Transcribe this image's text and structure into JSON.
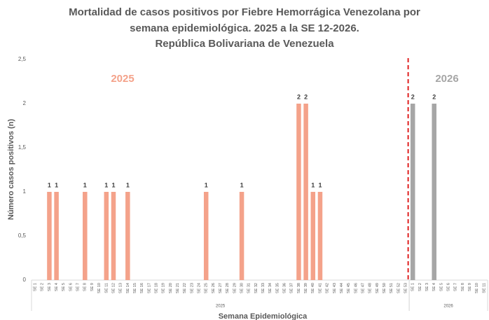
{
  "chart_data": {
    "type": "bar",
    "title": [
      "Mortalidad de casos positivos por Fiebre Hemorrágica Venezolana por",
      "semana epidemiológica. 2025 a la SE 12-2026.",
      "República Bolivariana de Venezuela"
    ],
    "y_label": "Número casos positivos (n)",
    "x_label": "Semana Epidemiológica",
    "categories": [
      "SE 1",
      "SE 2",
      "SE 3",
      "SE 4",
      "SE 5",
      "SE 6",
      "SE 7",
      "SE 8",
      "SE 9",
      "SE 10",
      "SE 11",
      "SE 12",
      "SE 13",
      "SE 14",
      "SE 15",
      "SE 16",
      "SE 17",
      "SE 18",
      "SE 19",
      "SE 20",
      "SE 21",
      "SE 22",
      "SE 23",
      "SE 24",
      "SE 25",
      "SE 26",
      "SE 27",
      "SE 28",
      "SE 29",
      "SE 30",
      "SE 31",
      "SE 32",
      "SE 33",
      "SE 34",
      "SE 35",
      "SE 36",
      "SE 37",
      "SE 38",
      "SE 39",
      "SE 40",
      "SE 41",
      "SE 42",
      "SE 43",
      "SE 44",
      "SE 45",
      "SE 46",
      "SE 47",
      "SE 48",
      "SE 49",
      "SE 50",
      "SE 51",
      "SE 52",
      "SE 53",
      "SE 1",
      "SE 2",
      "SE 3",
      "SE 4",
      "SE 5",
      "SE 6",
      "SE 7",
      "SE 8",
      "SE 9",
      "SE 10",
      "SE 11"
    ],
    "series": [
      {
        "name": "2025",
        "color": "#f4a28a",
        "values": [
          0,
          0,
          1,
          1,
          0,
          0,
          0,
          1,
          0,
          0,
          1,
          1,
          0,
          1,
          0,
          0,
          0,
          0,
          0,
          0,
          0,
          0,
          0,
          0,
          1,
          0,
          0,
          0,
          0,
          1,
          0,
          0,
          0,
          0,
          0,
          0,
          0,
          2,
          2,
          1,
          1,
          0,
          0,
          0,
          0,
          0,
          0,
          0,
          0,
          0,
          0,
          0,
          0,
          null,
          null,
          null,
          null,
          null,
          null,
          null,
          null,
          null,
          null,
          null
        ]
      },
      {
        "name": "2026",
        "color": "#a6a6a6",
        "values": [
          null,
          null,
          null,
          null,
          null,
          null,
          null,
          null,
          null,
          null,
          null,
          null,
          null,
          null,
          null,
          null,
          null,
          null,
          null,
          null,
          null,
          null,
          null,
          null,
          null,
          null,
          null,
          null,
          null,
          null,
          null,
          null,
          null,
          null,
          null,
          null,
          null,
          null,
          null,
          null,
          null,
          null,
          null,
          null,
          null,
          null,
          null,
          null,
          null,
          null,
          null,
          null,
          null,
          2,
          0,
          0,
          2,
          0,
          0,
          0,
          0,
          0,
          0,
          0
        ]
      }
    ],
    "ylim": [
      0,
      2.5
    ],
    "yticks": [
      0,
      {
        "value": 0.5,
        "label": "0,5"
      },
      1,
      {
        "value": 1.5,
        "label": "1,5"
      },
      2,
      {
        "value": 2.5,
        "label": "2,5"
      }
    ],
    "divider_color": "#e02020",
    "grid": false
  }
}
